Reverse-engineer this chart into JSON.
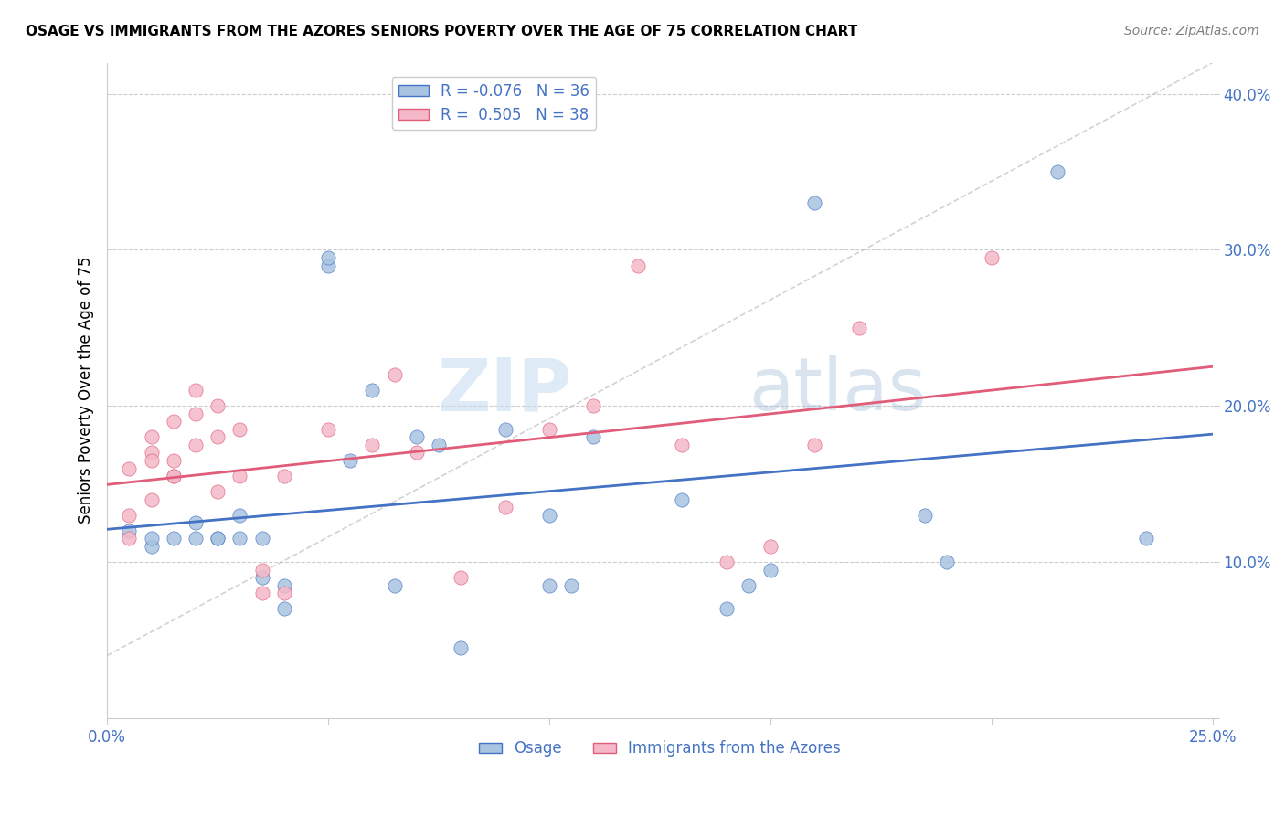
{
  "title": "OSAGE VS IMMIGRANTS FROM THE AZORES SENIORS POVERTY OVER THE AGE OF 75 CORRELATION CHART",
  "source": "Source: ZipAtlas.com",
  "ylabel": "Seniors Poverty Over the Age of 75",
  "xlim": [
    0,
    0.25
  ],
  "ylim": [
    0,
    0.42
  ],
  "legend1_label": "R = -0.076   N = 36",
  "legend2_label": "R =  0.505   N = 38",
  "legend_bottom_label1": "Osage",
  "legend_bottom_label2": "Immigrants from the Azores",
  "blue_color": "#a8c4e0",
  "pink_color": "#f4b8c8",
  "blue_line_color": "#4472c4",
  "pink_line_color": "#e05c78",
  "diag_line_color": "#c0c0c0",
  "watermark_zip": "ZIP",
  "watermark_atlas": "atlas",
  "blue_x": [
    0.005,
    0.01,
    0.01,
    0.015,
    0.02,
    0.02,
    0.025,
    0.025,
    0.03,
    0.03,
    0.035,
    0.035,
    0.04,
    0.04,
    0.05,
    0.05,
    0.055,
    0.06,
    0.065,
    0.07,
    0.075,
    0.08,
    0.09,
    0.1,
    0.1,
    0.105,
    0.11,
    0.13,
    0.14,
    0.145,
    0.15,
    0.16,
    0.185,
    0.19,
    0.215,
    0.235
  ],
  "blue_y": [
    0.12,
    0.11,
    0.115,
    0.115,
    0.115,
    0.125,
    0.115,
    0.115,
    0.13,
    0.115,
    0.115,
    0.09,
    0.085,
    0.07,
    0.29,
    0.295,
    0.165,
    0.21,
    0.085,
    0.18,
    0.175,
    0.045,
    0.185,
    0.13,
    0.085,
    0.085,
    0.18,
    0.14,
    0.07,
    0.085,
    0.095,
    0.33,
    0.13,
    0.1,
    0.35,
    0.115
  ],
  "pink_x": [
    0.005,
    0.005,
    0.005,
    0.01,
    0.01,
    0.01,
    0.01,
    0.015,
    0.015,
    0.015,
    0.015,
    0.02,
    0.02,
    0.02,
    0.025,
    0.025,
    0.025,
    0.03,
    0.03,
    0.035,
    0.035,
    0.04,
    0.04,
    0.05,
    0.06,
    0.065,
    0.07,
    0.08,
    0.09,
    0.1,
    0.11,
    0.12,
    0.13,
    0.14,
    0.15,
    0.16,
    0.17,
    0.2
  ],
  "pink_y": [
    0.115,
    0.13,
    0.16,
    0.14,
    0.17,
    0.18,
    0.165,
    0.155,
    0.19,
    0.165,
    0.155,
    0.175,
    0.195,
    0.21,
    0.145,
    0.18,
    0.2,
    0.185,
    0.155,
    0.08,
    0.095,
    0.08,
    0.155,
    0.185,
    0.175,
    0.22,
    0.17,
    0.09,
    0.135,
    0.185,
    0.2,
    0.29,
    0.175,
    0.1,
    0.11,
    0.175,
    0.25,
    0.295
  ],
  "marker_size": 120
}
